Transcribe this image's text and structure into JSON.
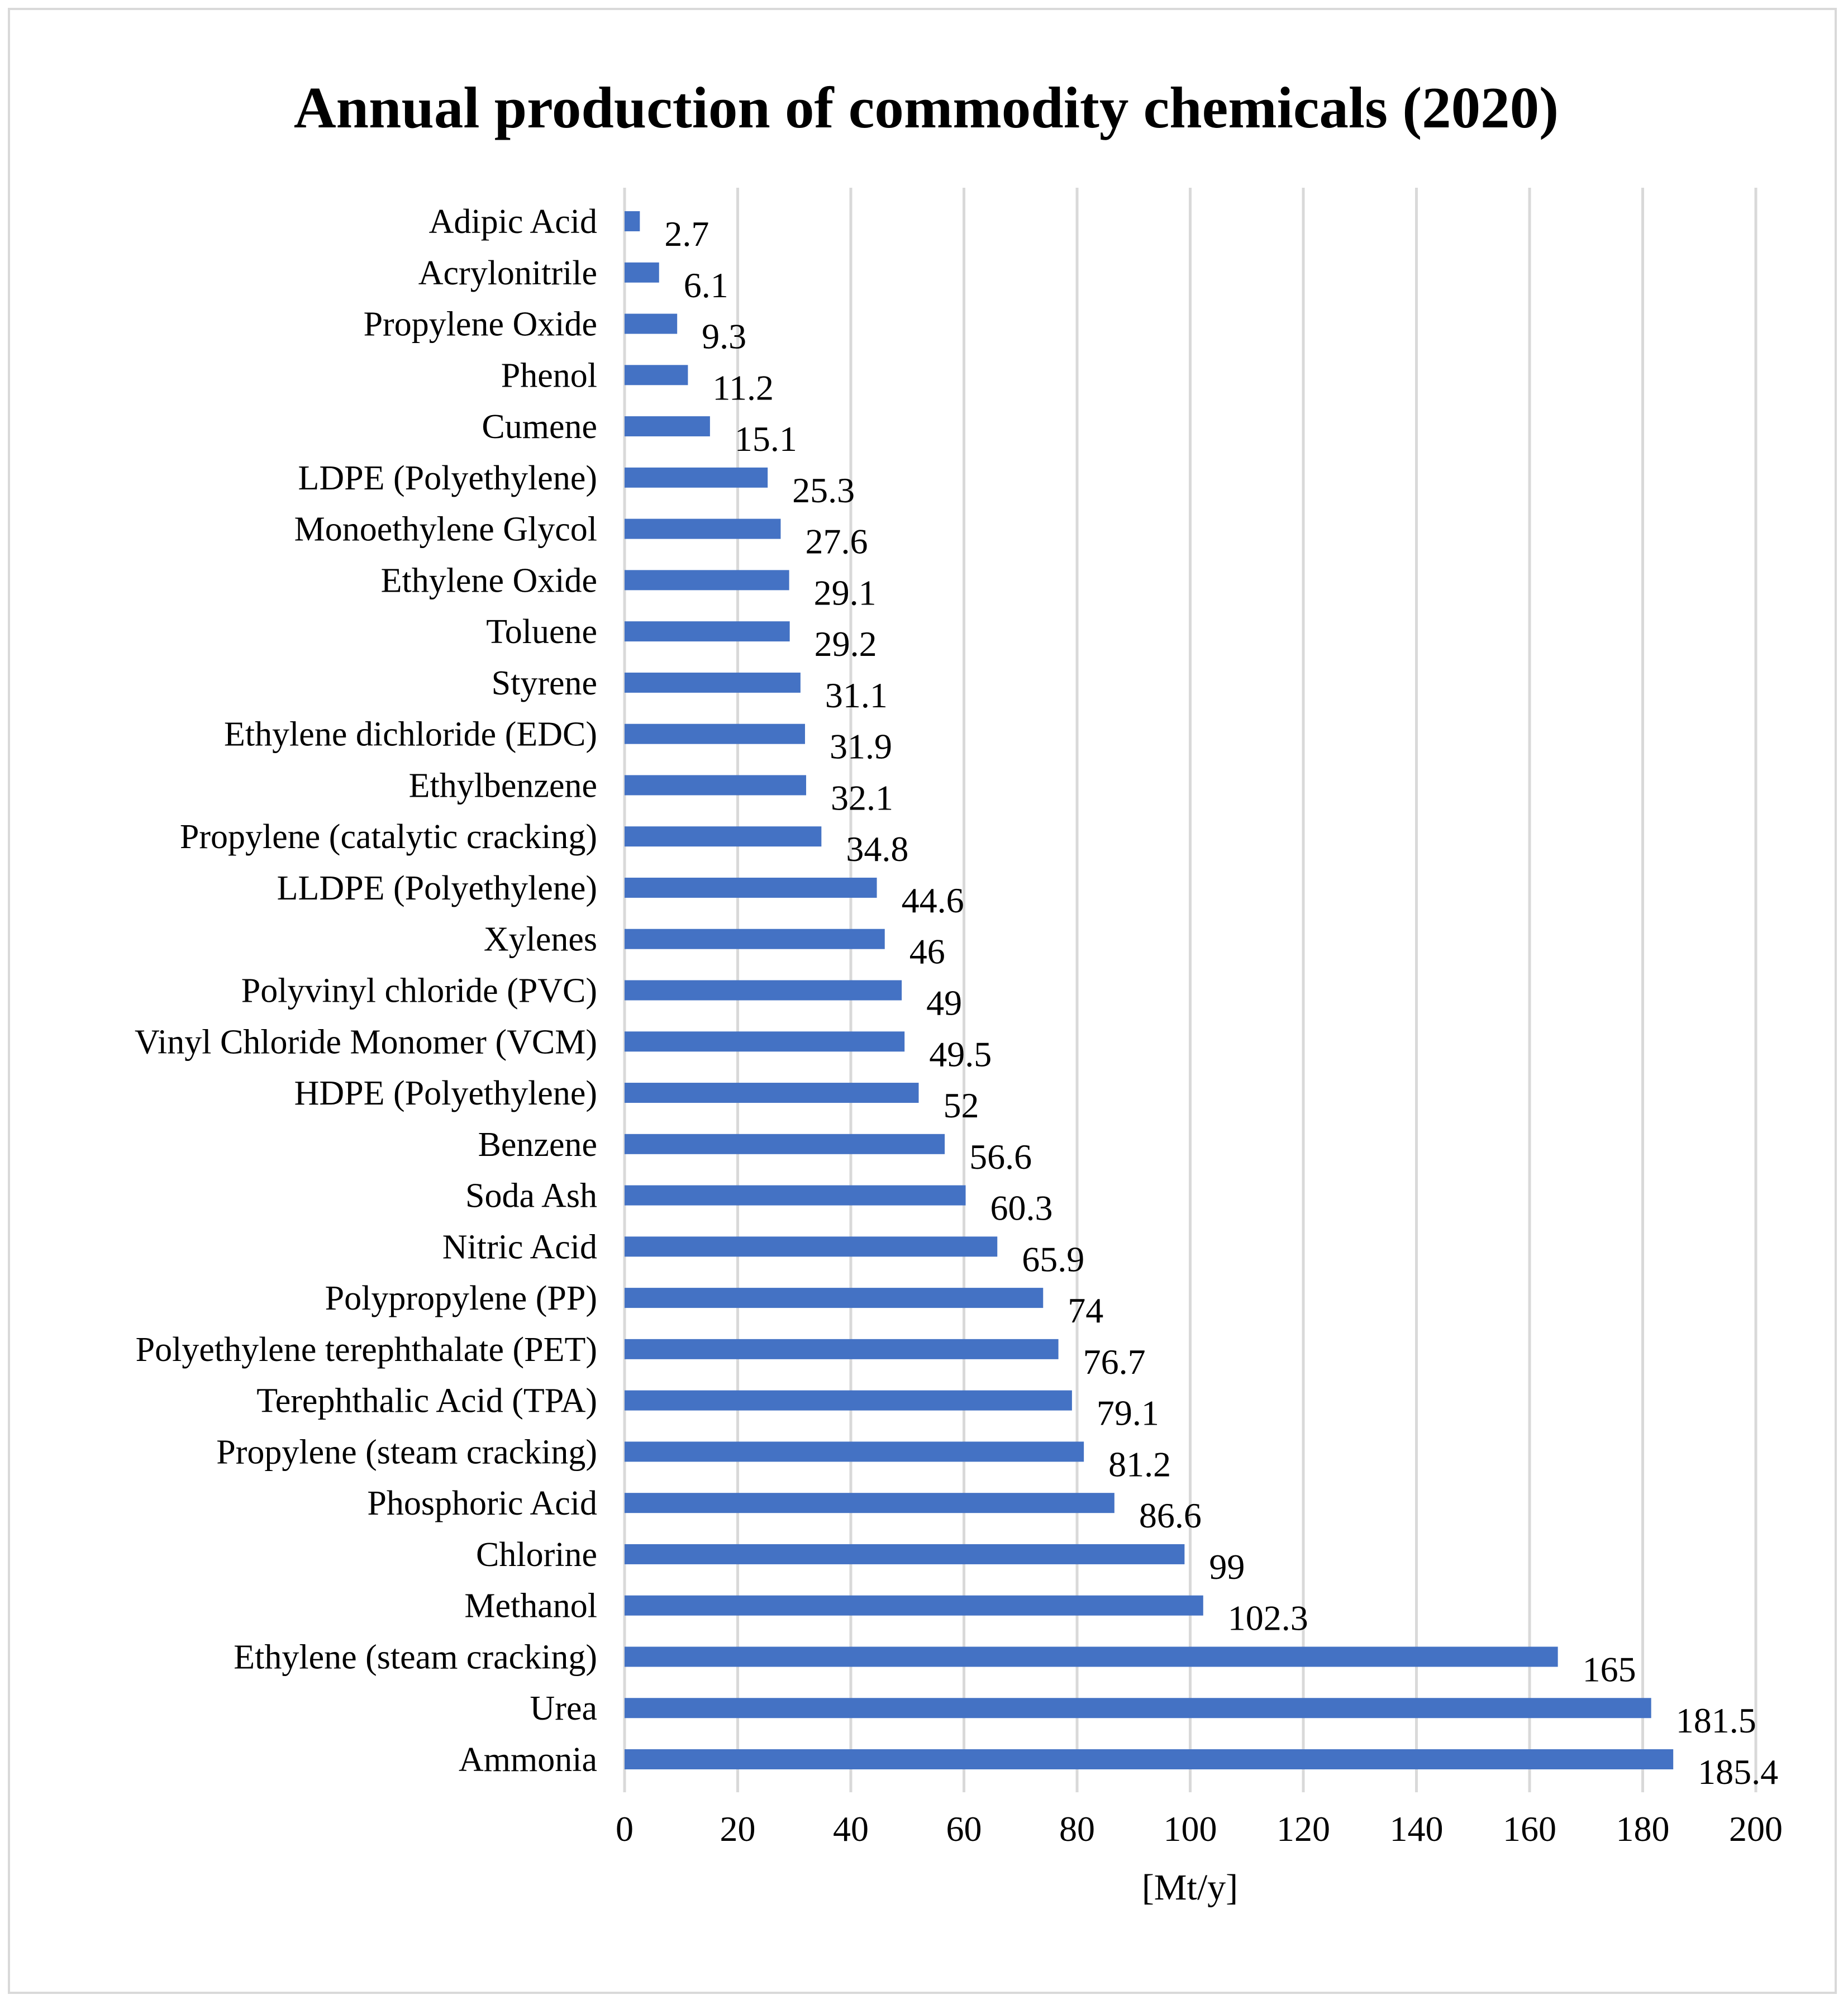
{
  "chart_data": {
    "type": "bar",
    "orientation": "horizontal",
    "title": "Annual production of commodity chemicals (2020)",
    "xlabel": "[Mt/y]",
    "ylabel": "",
    "xlim": [
      0,
      200
    ],
    "x_ticks": [
      0,
      20,
      40,
      60,
      80,
      100,
      120,
      140,
      160,
      180,
      200
    ],
    "grid": true,
    "legend": "none",
    "bar_color": "#4472c4",
    "grid_color": "#d9d9d9",
    "categories": [
      "Adipic Acid",
      "Acrylonitrile",
      "Propylene Oxide",
      "Phenol",
      "Cumene",
      "LDPE (Polyethylene)",
      "Monoethylene Glycol",
      "Ethylene Oxide",
      "Toluene",
      "Styrene",
      "Ethylene dichloride (EDC)",
      "Ethylbenzene",
      "Propylene (catalytic cracking)",
      "LLDPE (Polyethylene)",
      "Xylenes",
      "Polyvinyl chloride (PVC)",
      "Vinyl Chloride Monomer (VCM)",
      "HDPE (Polyethylene)",
      "Benzene",
      "Soda Ash",
      "Nitric Acid",
      "Polypropylene (PP)",
      "Polyethylene terephthalate (PET)",
      "Terephthalic Acid (TPA)",
      "Propylene (steam cracking)",
      "Phosphoric Acid",
      "Chlorine",
      "Methanol",
      "Ethylene (steam cracking)",
      "Urea",
      "Ammonia"
    ],
    "values": [
      2.7,
      6.1,
      9.3,
      11.2,
      15.1,
      25.3,
      27.6,
      29.1,
      29.2,
      31.1,
      31.9,
      32.1,
      34.8,
      44.6,
      46,
      49,
      49.5,
      52,
      56.6,
      60.3,
      65.9,
      74,
      76.7,
      79.1,
      81.2,
      86.6,
      99,
      102.3,
      165,
      181.5,
      185.4
    ],
    "value_labels": [
      "2.7",
      "6.1",
      "9.3",
      "11.2",
      "15.1",
      "25.3",
      "27.6",
      "29.1",
      "29.2",
      "31.1",
      "31.9",
      "32.1",
      "34.8",
      "44.6",
      "46",
      "49",
      "49.5",
      "52",
      "56.6",
      "60.3",
      "65.9",
      "74",
      "76.7",
      "79.1",
      "81.2",
      "86.6",
      "99",
      "102.3",
      "165",
      "181.5",
      "185.4"
    ]
  }
}
